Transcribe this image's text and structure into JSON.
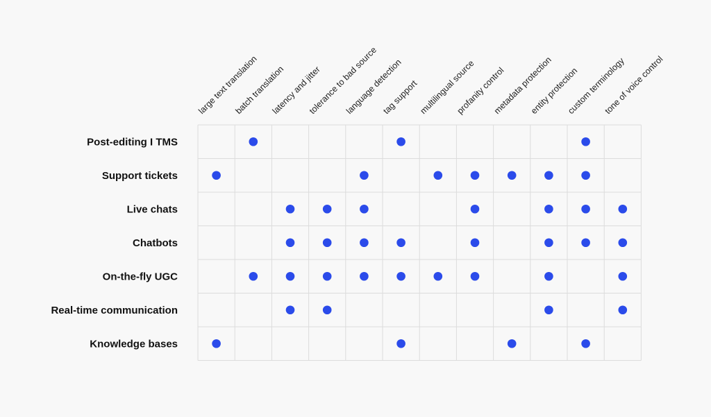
{
  "colors": {
    "dot": "#2b4bea",
    "grid": "#dcdcdc",
    "background": "#f8f8f8"
  },
  "chart_data": {
    "type": "table",
    "title": "",
    "columns": [
      "large text translation",
      "batch translation",
      "latency and jitter",
      "tolerance to bad source",
      "language detection",
      "tag support",
      "multilingual source",
      "profanity control",
      "metadata protection",
      "entity protection",
      "custom terminology",
      "tone of voice control"
    ],
    "rows": [
      "Post-editing I TMS",
      "Support tickets",
      "Live chats",
      "Chatbots",
      "On-the-fly UGC",
      "Real-time communication",
      "Knowledge bases"
    ],
    "matrix": [
      [
        0,
        1,
        0,
        0,
        0,
        1,
        0,
        0,
        0,
        0,
        1,
        0
      ],
      [
        1,
        0,
        0,
        0,
        1,
        0,
        1,
        1,
        1,
        1,
        1,
        0
      ],
      [
        0,
        0,
        1,
        1,
        1,
        0,
        0,
        1,
        0,
        1,
        1,
        1
      ],
      [
        0,
        0,
        1,
        1,
        1,
        1,
        0,
        1,
        0,
        1,
        1,
        1
      ],
      [
        0,
        1,
        1,
        1,
        1,
        1,
        1,
        1,
        0,
        1,
        0,
        1
      ],
      [
        0,
        0,
        1,
        1,
        0,
        0,
        0,
        0,
        0,
        1,
        0,
        1
      ],
      [
        1,
        0,
        0,
        0,
        0,
        1,
        0,
        0,
        1,
        0,
        1,
        0
      ]
    ]
  }
}
